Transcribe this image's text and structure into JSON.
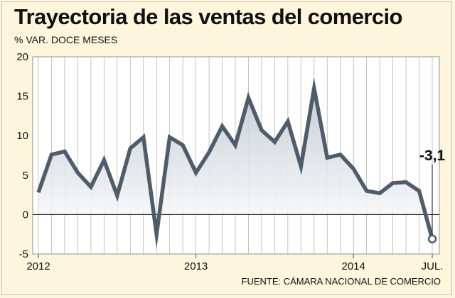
{
  "title": "Trayectoria de las ventas del comercio",
  "subtitle": "% VAR. DOCE MESES",
  "source": "FUENTE: CÁMARA NACIONAL DE COMERCIO",
  "colors": {
    "background": "#fdf6dc",
    "plot_background": "#ffffff",
    "line": "#4f5d6b",
    "area_top": "#c2cad4",
    "area_bottom": "#ffffff",
    "grid": "#b5b5b5",
    "zero_line": "#000000"
  },
  "chart_data": {
    "type": "line",
    "title": "Trayectoria de las ventas del comercio",
    "ylabel": "% VAR. DOCE MESES",
    "xlabel": "",
    "ylim": [
      -5,
      20
    ],
    "yticks": [
      -5,
      0,
      5,
      10,
      15,
      20
    ],
    "x_tick_labels": [
      "2012",
      "2013",
      "2014",
      "JUL."
    ],
    "x_tick_label_index": [
      0,
      12,
      24,
      30
    ],
    "grid": "vertical",
    "area_fill": true,
    "series": [
      {
        "values": [
          2.8,
          7.6,
          8.0,
          5.3,
          3.5,
          6.9,
          2.4,
          8.4,
          9.8,
          -2.5,
          9.8,
          8.8,
          5.3,
          7.9,
          11.2,
          8.8,
          14.8,
          10.7,
          9.2,
          11.8,
          6.1,
          16.0,
          7.2,
          7.6,
          5.8,
          3.0,
          2.7,
          4.0,
          4.1,
          3.0,
          -3.1
        ]
      }
    ],
    "annotation": {
      "index": 30,
      "text": "-3,1"
    }
  }
}
